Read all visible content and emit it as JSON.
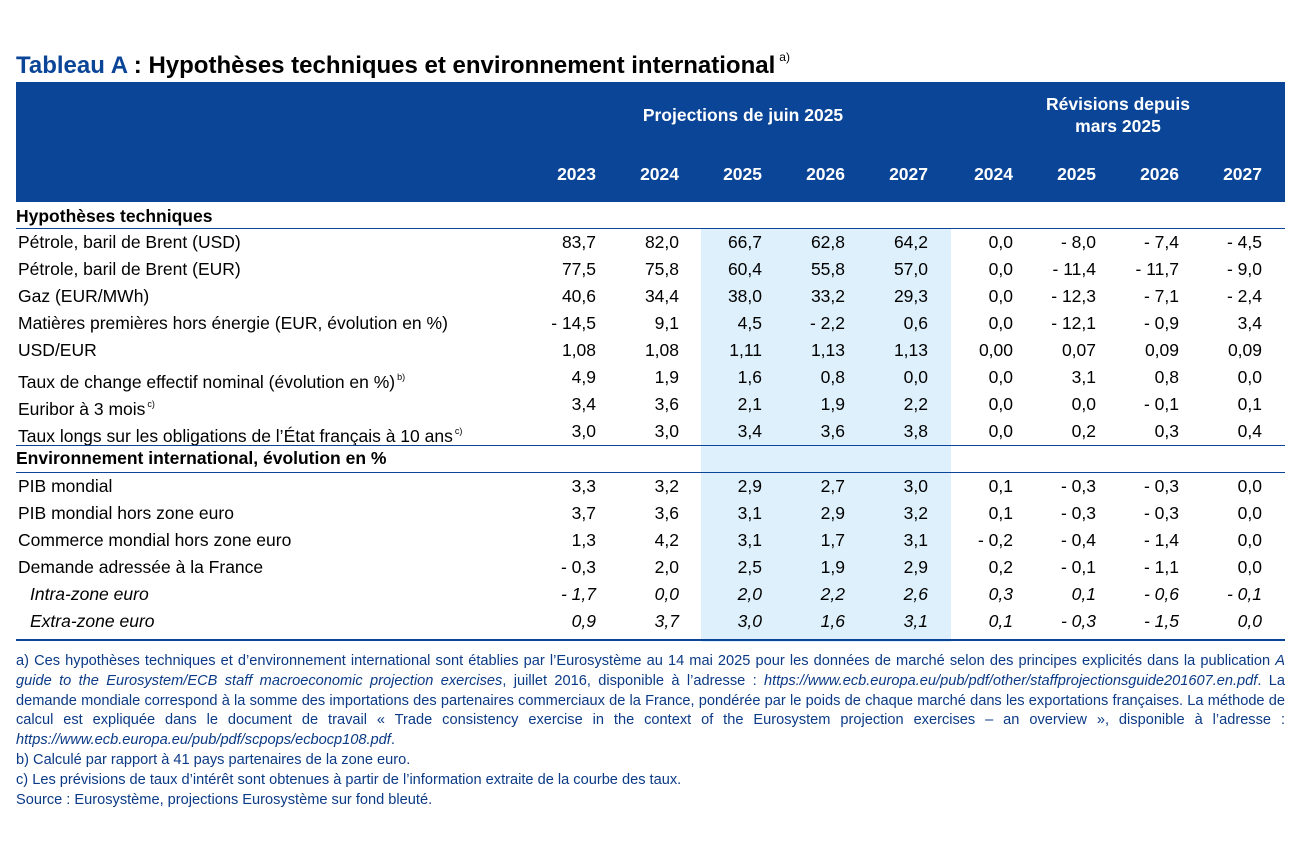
{
  "title": {
    "label": "Tableau A",
    "separator": " : ",
    "text": "Hypothèses techniques et environnement international",
    "note": "a)"
  },
  "header": {
    "group_projections": "Projections de juin 2025",
    "group_revisions_line1": "Révisions depuis",
    "group_revisions_line2": "mars 2025",
    "years": [
      "2023",
      "2024",
      "2025",
      "2026",
      "2027",
      "2024",
      "2025",
      "2026",
      "2027"
    ]
  },
  "sections": [
    {
      "title": "Hypothèses techniques",
      "rows": [
        {
          "label": "Pétrole, baril de Brent (USD)",
          "note": "",
          "italic": false,
          "values": [
            "83,7",
            "82,0",
            "66,7",
            "62,8",
            "64,2",
            "0,0",
            "- 8,0",
            "- 7,4",
            "- 4,5"
          ]
        },
        {
          "label": "Pétrole, baril de Brent (EUR)",
          "note": "",
          "italic": false,
          "values": [
            "77,5",
            "75,8",
            "60,4",
            "55,8",
            "57,0",
            "0,0",
            "- 11,4",
            "- 11,7",
            "- 9,0"
          ]
        },
        {
          "label": "Gaz (EUR/MWh)",
          "note": "",
          "italic": false,
          "values": [
            "40,6",
            "34,4",
            "38,0",
            "33,2",
            "29,3",
            "0,0",
            "- 12,3",
            "- 7,1",
            "- 2,4"
          ]
        },
        {
          "label": "Matières premières hors énergie (EUR, évolution en %)",
          "note": "",
          "italic": false,
          "values": [
            "- 14,5",
            "9,1",
            "4,5",
            "- 2,2",
            "0,6",
            "0,0",
            "- 12,1",
            "- 0,9",
            "3,4"
          ]
        },
        {
          "label": "USD/EUR",
          "note": "",
          "italic": false,
          "values": [
            "1,08",
            "1,08",
            "1,11",
            "1,13",
            "1,13",
            "0,00",
            "0,07",
            "0,09",
            "0,09"
          ]
        },
        {
          "label": "Taux de change effectif nominal (évolution en %)",
          "note": "b)",
          "italic": false,
          "values": [
            "4,9",
            "1,9",
            "1,6",
            "0,8",
            "0,0",
            "0,0",
            "3,1",
            "0,8",
            "0,0"
          ]
        },
        {
          "label": "Euribor à 3 mois",
          "note": "c)",
          "italic": false,
          "values": [
            "3,4",
            "3,6",
            "2,1",
            "1,9",
            "2,2",
            "0,0",
            "0,0",
            "- 0,1",
            "0,1"
          ]
        },
        {
          "label": "Taux longs sur les obligations de l’État français à 10 ans",
          "note": "c)",
          "italic": false,
          "values": [
            "3,0",
            "3,0",
            "3,4",
            "3,6",
            "3,8",
            "0,0",
            "0,2",
            "0,3",
            "0,4"
          ]
        }
      ]
    },
    {
      "title": "Environnement international, évolution en %",
      "rows": [
        {
          "label": "PIB mondial",
          "note": "",
          "italic": false,
          "values": [
            "3,3",
            "3,2",
            "2,9",
            "2,7",
            "3,0",
            "0,1",
            "- 0,3",
            "- 0,3",
            "0,0"
          ]
        },
        {
          "label": "PIB mondial hors zone euro",
          "note": "",
          "italic": false,
          "values": [
            "3,7",
            "3,6",
            "3,1",
            "2,9",
            "3,2",
            "0,1",
            "- 0,3",
            "- 0,3",
            "0,0"
          ]
        },
        {
          "label": "Commerce mondial hors zone euro",
          "note": "",
          "italic": false,
          "values": [
            "1,3",
            "4,2",
            "3,1",
            "1,7",
            "3,1",
            "- 0,2",
            "- 0,4",
            "- 1,4",
            "0,0"
          ]
        },
        {
          "label": "Demande adressée à la France",
          "note": "",
          "italic": false,
          "values": [
            "- 0,3",
            "2,0",
            "2,5",
            "1,9",
            "2,9",
            "0,2",
            "- 0,1",
            "- 1,1",
            "0,0"
          ]
        },
        {
          "label": "Intra-zone euro",
          "note": "",
          "italic": true,
          "values": [
            "- 1,7",
            "0,0",
            "2,0",
            "2,2",
            "2,6",
            "0,3",
            "0,1",
            "- 0,6",
            "- 0,1"
          ]
        },
        {
          "label": "Extra-zone euro",
          "note": "",
          "italic": true,
          "values": [
            "0,9",
            "3,7",
            "3,0",
            "1,6",
            "3,1",
            "0,1",
            "- 0,3",
            "- 1,5",
            "0,0"
          ]
        }
      ]
    }
  ],
  "notes": {
    "a_prefix": "a)  Ces hypothèses techniques et d’environnement international sont établies par l’Eurosystème au 14 mai 2025 pour les données de marché selon des principes explicités dans la publication ",
    "a_pub": "A guide to the Eurosystem/ECB staff macroeconomic projection exercises",
    "a_mid1": ", juillet 2016, disponible à l’adresse : ",
    "a_url1": "https://www.ecb.europa.eu/pub/pdf/other/staffprojectionsguide201607.en.pdf",
    "a_mid2": ". La demande mondiale correspond à la somme des importations des partenaires commerciaux de la France, pondérée par le poids de chaque marché dans les exportations françaises. La méthode de calcul est expliquée dans le document de travail « Trade consistency exercise in the context of the Eurosystem projection exercises – an overview », disponible à l’adresse : ",
    "a_url2": "https://www.ecb.europa.eu/pub/pdf/scpops/ecbocp108.pdf",
    "a_end": ".",
    "b": "b)  Calculé par rapport à 41 pays partenaires de la zone euro.",
    "c": "c)  Les prévisions de taux d’intérêt sont obtenues à partir de l’information extraite de la courbe des taux.",
    "source": "Source : Eurosystème, projections Eurosystème sur fond bleuté."
  },
  "colors": {
    "brand_blue": "#0b4597",
    "highlight": "#def0fb",
    "notes_text": "#0b3a86"
  }
}
